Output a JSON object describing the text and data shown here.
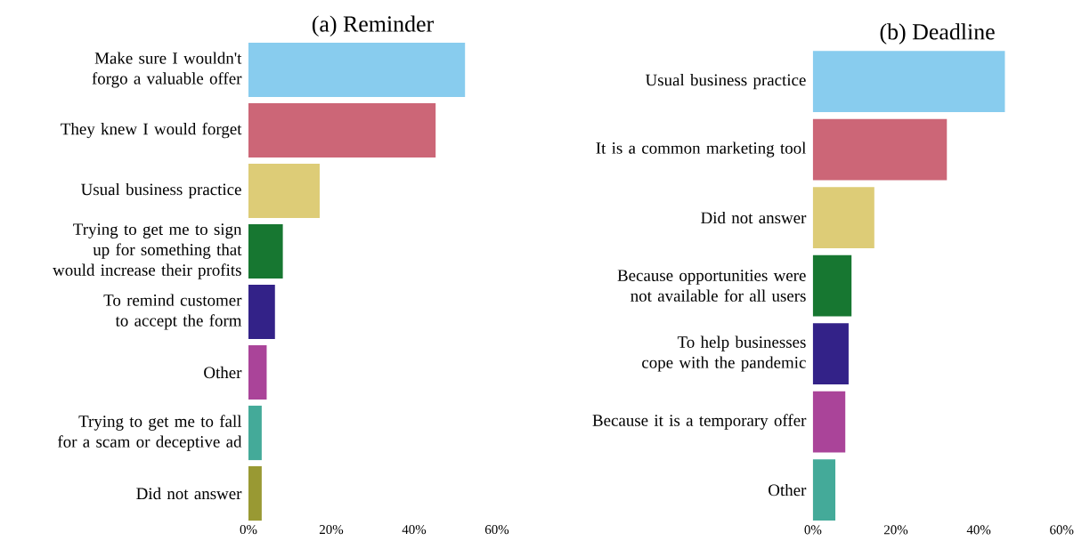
{
  "chart_data": [
    {
      "type": "bar",
      "orientation": "horizontal",
      "title": "(a) Reminder",
      "categories": [
        "Make sure I wouldn't forgo a valuable offer",
        "They knew I would forget",
        "Usual business practice",
        "Trying to get me to sign up for something that would increase their profits",
        "To remind customer to accept the form",
        "Other",
        "Trying to get me to fall for a scam or deceptive ad",
        "Did not answer"
      ],
      "values": [
        52.3,
        45.2,
        17.2,
        8.3,
        6.4,
        4.4,
        3.2,
        3.2
      ],
      "colors": [
        "#88ccee",
        "#cc6677",
        "#ddcc77",
        "#177731",
        "#332288",
        "#aa4499",
        "#44aa99",
        "#999933"
      ],
      "xlim": [
        0,
        60
      ],
      "xticks": [
        {
          "value": 0,
          "label": "0%"
        },
        {
          "value": 20,
          "label": "20%"
        },
        {
          "value": 40,
          "label": "40%"
        },
        {
          "value": 60,
          "label": "60%"
        }
      ]
    },
    {
      "type": "bar",
      "orientation": "horizontal",
      "title": "(b) Deadline",
      "categories": [
        "Usual business practice",
        "It is a common marketing tool",
        "Did not answer",
        "Because opportunities were not available for all users",
        "To help businesses cope with the pandemic",
        "Because it is a temporary offer",
        "Other"
      ],
      "values": [
        46.3,
        32.3,
        14.8,
        9.3,
        8.6,
        7.8,
        5.4
      ],
      "colors": [
        "#88ccee",
        "#cc6677",
        "#ddcc77",
        "#177731",
        "#332288",
        "#aa4499",
        "#44aa99"
      ],
      "xlim": [
        0,
        60
      ],
      "xticks": [
        {
          "value": 0,
          "label": "0%"
        },
        {
          "value": 20,
          "label": "20%"
        },
        {
          "value": 40,
          "label": "40%"
        },
        {
          "value": 60,
          "label": "60%"
        }
      ]
    }
  ]
}
